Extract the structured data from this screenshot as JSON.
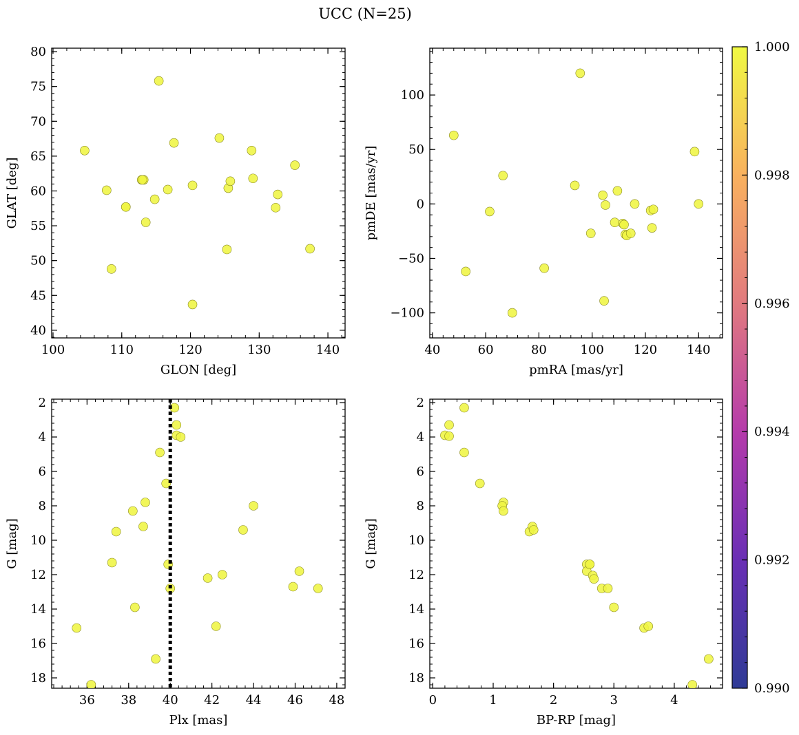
{
  "title": "UCC (N=25)",
  "colorbar": {
    "min": 0.99,
    "max": 1.0,
    "ticks": [
      "0.990",
      "0.992",
      "0.994",
      "0.996",
      "0.998",
      "1.000"
    ],
    "colors": [
      "#2f3b96",
      "#6a2fb5",
      "#b53bab",
      "#e17a7f",
      "#f9b15e",
      "#f0f943"
    ]
  },
  "marker": {
    "fill": "#eff543",
    "edge": "#8a8a20"
  },
  "chart_data": [
    {
      "type": "scatter",
      "name": "glon-glat",
      "xlabel": "GLON [deg]",
      "ylabel": "GLAT [deg]",
      "xlim": [
        99.8,
        142.5
      ],
      "ylim": [
        38.9,
        80.5
      ],
      "xticks": [
        100,
        110,
        120,
        130,
        140
      ],
      "yticks": [
        40,
        45,
        50,
        55,
        60,
        65,
        70,
        75,
        80
      ],
      "points": [
        [
          104.6,
          65.8
        ],
        [
          107.8,
          60.1
        ],
        [
          108.5,
          48.8
        ],
        [
          110.6,
          57.7
        ],
        [
          110.6,
          57.7
        ],
        [
          112.9,
          61.6
        ],
        [
          113.2,
          61.6
        ],
        [
          113.5,
          55.5
        ],
        [
          114.8,
          58.8
        ],
        [
          115.4,
          75.8
        ],
        [
          116.7,
          60.2
        ],
        [
          117.6,
          66.9
        ],
        [
          120.3,
          60.8
        ],
        [
          120.3,
          43.7
        ],
        [
          124.2,
          67.6
        ],
        [
          125.3,
          51.6
        ],
        [
          125.5,
          60.4
        ],
        [
          125.8,
          61.4
        ],
        [
          128.9,
          65.8
        ],
        [
          129.1,
          61.8
        ],
        [
          132.4,
          57.6
        ],
        [
          132.7,
          59.5
        ],
        [
          135.2,
          63.7
        ],
        [
          137.4,
          51.7
        ],
        [
          113.0,
          61.6
        ]
      ]
    },
    {
      "type": "scatter",
      "name": "pmra-pmde",
      "xlabel": "pmRA [mas/yr]",
      "ylabel": "pmDE [mas/yr]",
      "xlim": [
        39,
        149
      ],
      "ylim": [
        -123,
        143
      ],
      "xticks": [
        40,
        60,
        80,
        100,
        120,
        140
      ],
      "yticks": [
        -100,
        -50,
        0,
        50,
        100
      ],
      "points": [
        [
          48.0,
          63
        ],
        [
          52.5,
          -62
        ],
        [
          61.5,
          -7
        ],
        [
          66.5,
          26
        ],
        [
          70.0,
          -100
        ],
        [
          82.0,
          -59
        ],
        [
          93.5,
          17
        ],
        [
          95.5,
          120
        ],
        [
          99.5,
          -27
        ],
        [
          104.0,
          8
        ],
        [
          104.5,
          -89
        ],
        [
          105.0,
          -1
        ],
        [
          108.5,
          -17
        ],
        [
          109.5,
          12
        ],
        [
          111.5,
          -18
        ],
        [
          112.0,
          -19
        ],
        [
          112.5,
          -28
        ],
        [
          113.0,
          -29
        ],
        [
          114.5,
          -27
        ],
        [
          116.0,
          0
        ],
        [
          122.0,
          -6
        ],
        [
          123.0,
          -5
        ],
        [
          122.5,
          -22
        ],
        [
          138.5,
          48
        ],
        [
          140.0,
          0
        ]
      ]
    },
    {
      "type": "scatter",
      "name": "plx-g",
      "xlabel": "Plx [mas]",
      "ylabel": "G [mag]",
      "xlim": [
        34.3,
        48.4
      ],
      "ylim": [
        18.6,
        1.8
      ],
      "xticks": [
        36,
        38,
        40,
        42,
        44,
        46,
        48
      ],
      "yticks": [
        2,
        4,
        6,
        8,
        10,
        12,
        14,
        16,
        18
      ],
      "vline": 40.0,
      "points": [
        [
          35.5,
          15.1
        ],
        [
          36.2,
          18.4
        ],
        [
          37.2,
          11.3
        ],
        [
          37.4,
          9.5
        ],
        [
          38.2,
          8.3
        ],
        [
          38.3,
          13.9
        ],
        [
          38.7,
          9.2
        ],
        [
          38.8,
          7.8
        ],
        [
          39.3,
          16.9
        ],
        [
          39.5,
          4.9
        ],
        [
          39.8,
          6.7
        ],
        [
          39.9,
          11.4
        ],
        [
          40.0,
          12.8
        ],
        [
          40.2,
          2.3
        ],
        [
          40.3,
          3.3
        ],
        [
          40.3,
          3.9
        ],
        [
          40.5,
          4.0
        ],
        [
          41.8,
          12.2
        ],
        [
          42.2,
          15.0
        ],
        [
          42.5,
          12.0
        ],
        [
          43.5,
          9.4
        ],
        [
          44.0,
          8.0
        ],
        [
          45.9,
          12.7
        ],
        [
          46.2,
          11.8
        ],
        [
          47.1,
          12.8
        ]
      ]
    },
    {
      "type": "scatter",
      "name": "bprp-g",
      "xlabel": "BP-RP [mag]",
      "ylabel": "G [mag]",
      "xlim": [
        -0.05,
        4.8
      ],
      "ylim": [
        18.6,
        1.8
      ],
      "xticks": [
        0,
        1,
        2,
        3,
        4
      ],
      "yticks": [
        2,
        4,
        6,
        8,
        10,
        12,
        14,
        16,
        18
      ],
      "points": [
        [
          0.2,
          3.9
        ],
        [
          0.27,
          3.3
        ],
        [
          0.27,
          3.95
        ],
        [
          0.52,
          2.3
        ],
        [
          0.52,
          4.9
        ],
        [
          0.78,
          6.7
        ],
        [
          1.17,
          7.8
        ],
        [
          1.15,
          8.0
        ],
        [
          1.17,
          8.3
        ],
        [
          1.6,
          9.5
        ],
        [
          1.65,
          9.2
        ],
        [
          1.67,
          9.4
        ],
        [
          2.55,
          11.4
        ],
        [
          2.6,
          11.4
        ],
        [
          2.55,
          11.8
        ],
        [
          2.65,
          12.05
        ],
        [
          2.67,
          12.25
        ],
        [
          2.8,
          12.8
        ],
        [
          2.9,
          12.8
        ],
        [
          3.0,
          13.9
        ],
        [
          3.5,
          15.1
        ],
        [
          3.57,
          15.0
        ],
        [
          4.3,
          18.4
        ],
        [
          4.57,
          16.9
        ],
        [
          2.6,
          11.4
        ]
      ]
    }
  ]
}
